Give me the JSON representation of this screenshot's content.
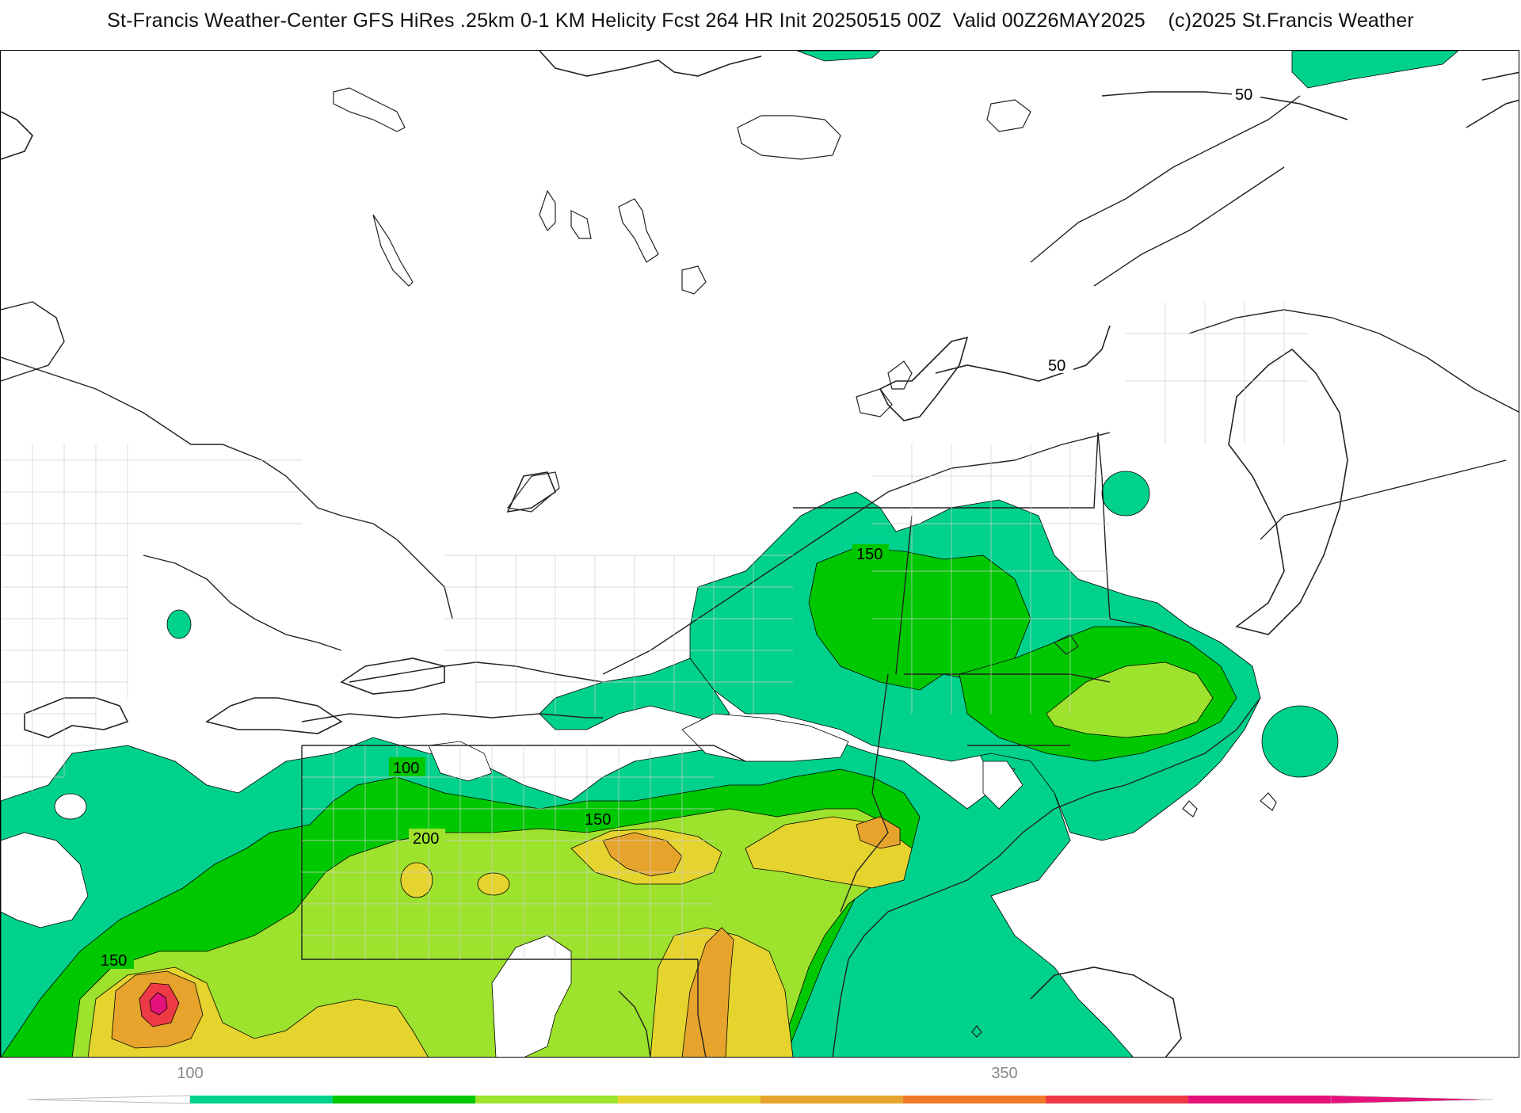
{
  "title": "St-Francis Weather-Center GFS HiRes .25km 0-1 KM Helicity Fcst 264 HR Init 20250515 00Z  Valid 00Z26MAY2025    (c)2025 St.Francis Weather",
  "contour_labels": [
    "50",
    "50",
    "150",
    "100",
    "150",
    "200",
    "150"
  ],
  "colorbar": {
    "tick_labels": [
      "100",
      "350"
    ],
    "colors": [
      "#00d18c",
      "#00c800",
      "#9de22c",
      "#e6d42e",
      "#e6a42c",
      "#f07a2a",
      "#ee3a45",
      "#e4127a"
    ]
  },
  "map": {
    "fill_colors": {
      "lvl1": "#00d18c",
      "lvl2": "#00c800",
      "lvl3": "#9de22c",
      "lvl4": "#e6d42e",
      "lvl5": "#e6a42c",
      "lvl6": "#ee3a45",
      "lvl7": "#e4127a"
    }
  }
}
